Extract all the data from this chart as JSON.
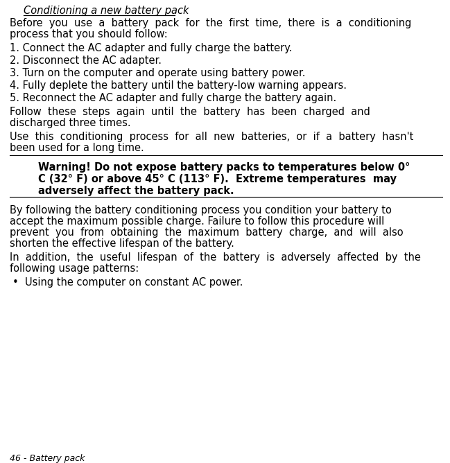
{
  "bg_color": "#ffffff",
  "title_italic_underline": "Conditioning a new battery pack",
  "numbered_items": [
    "1. Connect the AC adapter and fully charge the battery.",
    "2. Disconnect the AC adapter.",
    "3. Turn on the computer and operate using battery power.",
    "4. Fully deplete the battery until the battery-low warning appears.",
    "5. Reconnect the AC adapter and fully charge the battery again."
  ],
  "bullet_text": "Using the computer on constant AC power.",
  "footer_text": "46 - Battery pack",
  "font_size_main": 10.5,
  "font_size_footer": 9.0
}
